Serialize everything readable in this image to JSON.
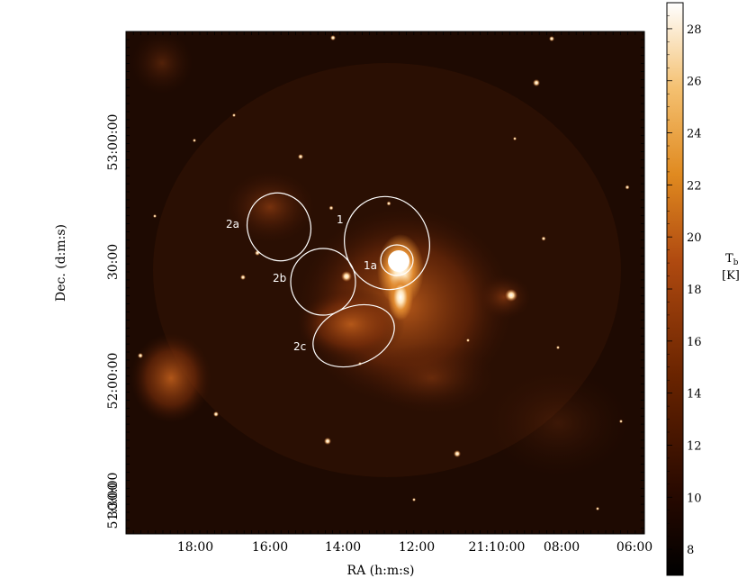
{
  "figure": {
    "xlabel": "RA (h:m:s)",
    "ylabel": "Dec. (d:m:s)",
    "x_ticks": [
      "18:00",
      "16:00",
      "14:00",
      "12:00",
      "21:10:00",
      "08:00",
      "06:00"
    ],
    "y_ticks": [
      "53:00:00",
      "30:00",
      "52:00:00",
      "30:00",
      "51:30:00"
    ],
    "regions": [
      "1",
      "1a",
      "2a",
      "2b",
      "2c"
    ],
    "colormap": [
      "#000000",
      "#2a0a00",
      "#6a2400",
      "#b04a10",
      "#e08a20",
      "#f4c070",
      "#ffffff"
    ]
  },
  "colorbar": {
    "title_line1": "T",
    "title_sub": "b",
    "title_line2": "[K]",
    "ticks": [
      "28",
      "26",
      "24",
      "22",
      "20",
      "18",
      "16",
      "14",
      "12",
      "10",
      "8"
    ],
    "min": 7,
    "max": 29
  }
}
